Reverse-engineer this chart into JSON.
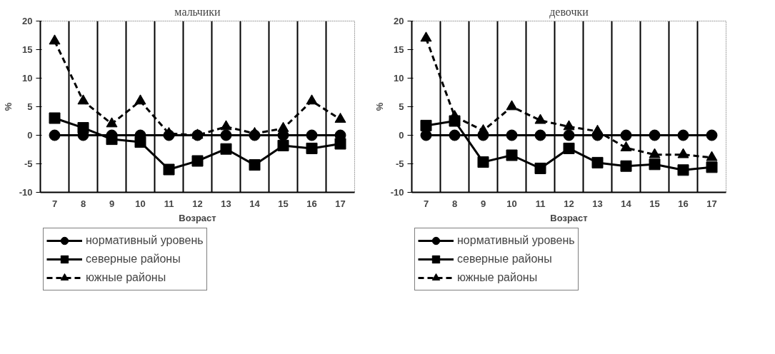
{
  "chart_data": [
    {
      "type": "line",
      "title": "мальчики",
      "xlabel": "Возраст",
      "ylabel": "%",
      "categories": [
        "7",
        "8",
        "9",
        "10",
        "11",
        "12",
        "13",
        "14",
        "15",
        "16",
        "17"
      ],
      "ylim": [
        -10,
        20
      ],
      "yticks": [
        -10,
        -5,
        0,
        5,
        10,
        15,
        20
      ],
      "grid": "x",
      "legend": "bottom",
      "series": [
        {
          "name": "нормативный уровень",
          "color": "#000000",
          "marker": "circle",
          "line_style": "solid",
          "values": [
            0,
            0,
            0,
            0,
            0,
            0,
            0,
            0,
            0,
            0,
            0
          ]
        },
        {
          "name": "северные районы",
          "color": "#000000",
          "marker": "square",
          "line_style": "solid",
          "values": [
            3,
            1.3,
            -0.7,
            -1.2,
            -6,
            -4.5,
            -2.4,
            -5.2,
            -1.8,
            -2.3,
            -1.5
          ]
        },
        {
          "name": "южные районы",
          "color": "#000000",
          "marker": "triangle",
          "line_style": "dashed",
          "values": [
            16.5,
            6,
            2,
            6,
            0.3,
            0,
            1.5,
            0.3,
            1.2,
            6,
            2.8
          ]
        }
      ]
    },
    {
      "type": "line",
      "title": "девочки",
      "xlabel": "Возраст",
      "ylabel": "%",
      "categories": [
        "7",
        "8",
        "9",
        "10",
        "11",
        "12",
        "13",
        "14",
        "15",
        "16",
        "17"
      ],
      "ylim": [
        -10,
        20
      ],
      "yticks": [
        -10,
        -5,
        0,
        5,
        10,
        15,
        20
      ],
      "grid": "x",
      "legend": "bottom",
      "series": [
        {
          "name": "нормативный уровень",
          "color": "#000000",
          "marker": "circle",
          "line_style": "solid",
          "values": [
            0,
            0,
            0,
            0,
            0,
            0,
            0,
            0,
            0,
            0,
            0
          ]
        },
        {
          "name": "северные районы",
          "color": "#000000",
          "marker": "square",
          "line_style": "solid",
          "values": [
            1.7,
            2.5,
            -4.7,
            -3.5,
            -5.8,
            -2.3,
            -4.8,
            -5.4,
            -5.1,
            -6.1,
            -5.6
          ]
        },
        {
          "name": "южные районы",
          "color": "#000000",
          "marker": "triangle",
          "line_style": "dashed",
          "values": [
            17,
            3.3,
            0.8,
            5,
            2.6,
            1.5,
            0.7,
            -2.2,
            -3.4,
            -3.4,
            -3.9
          ]
        }
      ]
    }
  ]
}
